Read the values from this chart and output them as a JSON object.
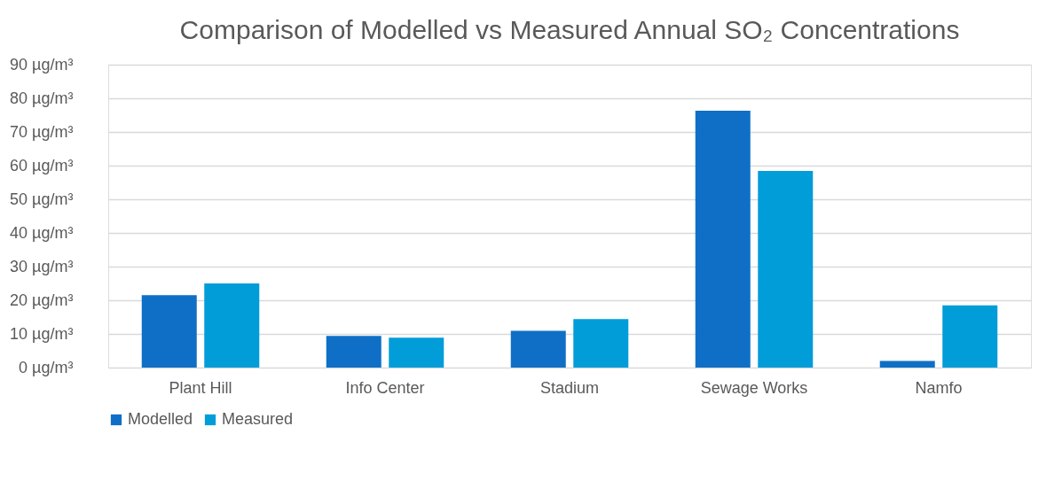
{
  "chart_data": {
    "type": "bar",
    "title": "Comparison of Modelled vs Measured Annual SO₂ Concentrations",
    "categories": [
      "Plant Hill",
      "Info Center",
      "Stadium",
      "Sewage Works",
      "Namfo"
    ],
    "series": [
      {
        "name": "Modelled",
        "color": "#0f6fc6",
        "values": [
          21.5,
          9.4,
          10.9,
          76.3,
          2.0
        ]
      },
      {
        "name": "Measured",
        "color": "#009dd9",
        "values": [
          25.0,
          8.9,
          14.4,
          58.4,
          18.5
        ]
      }
    ],
    "ylim": [
      0,
      90
    ],
    "yticks": [
      {
        "value": 0,
        "label": "0 µg/m³"
      },
      {
        "value": 10,
        "label": "10 µg/m³"
      },
      {
        "value": 20,
        "label": "20 µg/m³"
      },
      {
        "value": 30,
        "label": "30 µg/m³"
      },
      {
        "value": 40,
        "label": "40 µg/m³"
      },
      {
        "value": 50,
        "label": "50 µg/m³"
      },
      {
        "value": 60,
        "label": "60 µg/m³"
      },
      {
        "value": 70,
        "label": "70 µg/m³"
      },
      {
        "value": 80,
        "label": "80 µg/m³"
      },
      {
        "value": 90,
        "label": "90 µg/m³"
      }
    ],
    "grid": "y",
    "legend": "bottom"
  }
}
